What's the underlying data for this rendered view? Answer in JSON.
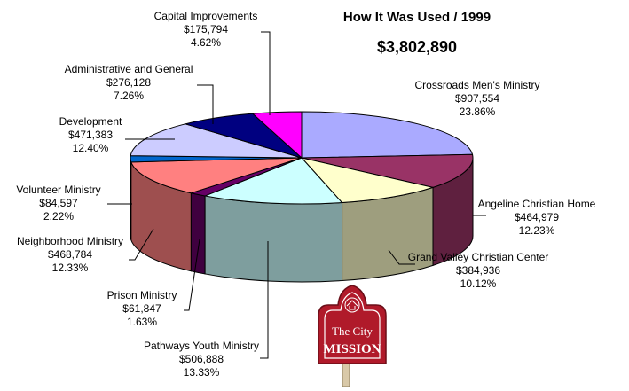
{
  "chart_data": {
    "type": "pie",
    "title": "How It Was Used / 1999",
    "total": "$3,802,890",
    "slices": [
      {
        "label": "Crossroads Men's Ministry",
        "amount": "$907,554",
        "percent": "23.86%",
        "value": 23.86,
        "color": "#aaaaff"
      },
      {
        "label": "Angeline Christian Home",
        "amount": "$464,979",
        "percent": "12.23%",
        "value": 12.23,
        "color": "#993366"
      },
      {
        "label": "Grand Valley Christian Center",
        "amount": "$384,936",
        "percent": "10.12%",
        "value": 10.12,
        "color": "#ffffcc"
      },
      {
        "label": "Pathways Youth Ministry",
        "amount": "$506,888",
        "percent": "13.33%",
        "value": 13.33,
        "color": "#ccffff"
      },
      {
        "label": "Prison Ministry",
        "amount": "$61,847",
        "percent": "1.63%",
        "value": 1.63,
        "color": "#660066"
      },
      {
        "label": "Neighborhood Ministry",
        "amount": "$468,784",
        "percent": "12.33%",
        "value": 12.33,
        "color": "#ff8080"
      },
      {
        "label": "Volunteer Ministry",
        "amount": "$84,597",
        "percent": "2.22%",
        "value": 2.22,
        "color": "#0066cc"
      },
      {
        "label": "Development",
        "amount": "$471,383",
        "percent": "12.40%",
        "value": 12.4,
        "color": "#ccccff"
      },
      {
        "label": "Administrative and General",
        "amount": "$276,128",
        "percent": "7.26%",
        "value": 7.26,
        "color": "#000080"
      },
      {
        "label": "Capital Improvements",
        "amount": "$175,794",
        "percent": "4.62%",
        "value": 4.62,
        "color": "#ff00ff"
      }
    ]
  },
  "logo": {
    "line1": "The City",
    "line2": "MISSION",
    "colors": {
      "sign": "#b01a2a",
      "text": "#ffffff",
      "post": "#d9c9a8"
    }
  }
}
